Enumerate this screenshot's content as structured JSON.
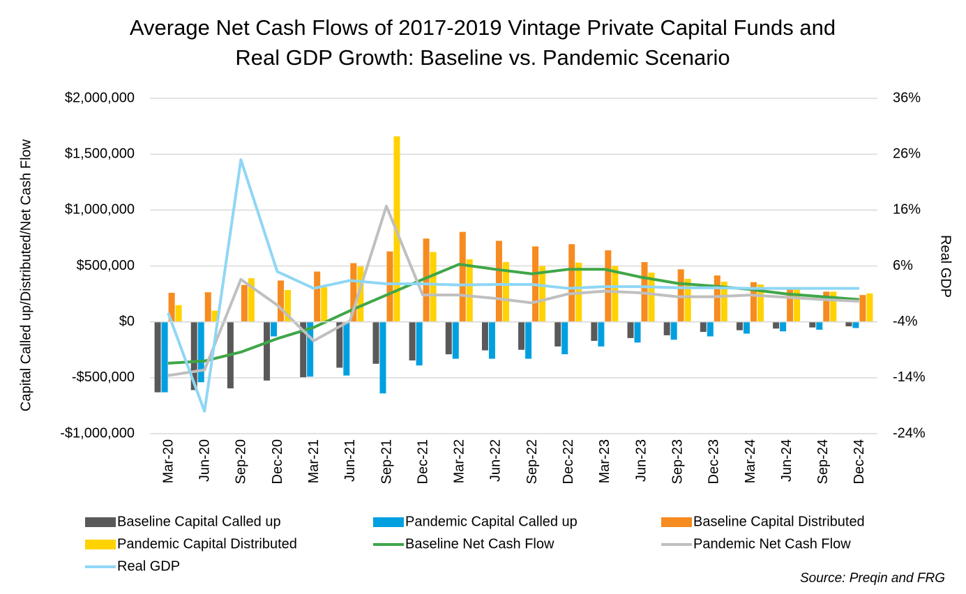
{
  "chart_data": {
    "type": "bar",
    "title": "Average Net Cash Flows of 2017-2019 Vintage Private Capital Funds and",
    "subtitle": "Real GDP Growth: Baseline vs. Pandemic Scenario",
    "y_label": "Capital Called up/Distributed/Net Cash Flow",
    "y2_label": "Real GDP",
    "source": "Source: Preqin and FRG",
    "categories": [
      "Mar-20",
      "Jun-20",
      "Sep-20",
      "Dec-20",
      "Mar-21",
      "Jun-21",
      "Sep-21",
      "Dec-21",
      "Mar-22",
      "Jun-22",
      "Sep-22",
      "Dec-22",
      "Mar-23",
      "Jun-23",
      "Sep-23",
      "Dec-23",
      "Mar-24",
      "Jun-24",
      "Sep-24",
      "Dec-24"
    ],
    "ylim": [
      -1000000,
      2000000
    ],
    "yticks": [
      {
        "value": -1000000,
        "label": "-$1,000,000"
      },
      {
        "value": -500000,
        "label": "-$500,000"
      },
      {
        "value": 0,
        "label": "$0"
      },
      {
        "value": 500000,
        "label": "$500,000"
      },
      {
        "value": 1000000,
        "label": "$1,000,000"
      },
      {
        "value": 1500000,
        "label": "$1,500,000"
      },
      {
        "value": 2000000,
        "label": "$2,000,000"
      }
    ],
    "y2lim": [
      -24,
      36
    ],
    "y2ticks": [
      {
        "value": -24,
        "label": "-24%"
      },
      {
        "value": -14,
        "label": "-14%"
      },
      {
        "value": -4,
        "label": "-4%"
      },
      {
        "value": 6,
        "label": "6%"
      },
      {
        "value": 16,
        "label": "16%"
      },
      {
        "value": 26,
        "label": "26%"
      },
      {
        "value": 36,
        "label": "36%"
      }
    ],
    "grid": true,
    "series": [
      {
        "name": "Baseline Capital Called up",
        "type": "bar",
        "color": "#595959",
        "values": [
          -630000,
          -610000,
          -595000,
          -525000,
          -495000,
          -410000,
          -375000,
          -345000,
          -290000,
          -255000,
          -250000,
          -220000,
          -170000,
          -145000,
          -120000,
          -90000,
          -75000,
          -60000,
          -50000,
          -40000
        ]
      },
      {
        "name": "Pandemic Capital Called up",
        "type": "bar",
        "color": "#00a0e0",
        "values": [
          -630000,
          -540000,
          0,
          -130000,
          -490000,
          -480000,
          -640000,
          -390000,
          -330000,
          -330000,
          -330000,
          -290000,
          -220000,
          -185000,
          -160000,
          -130000,
          -105000,
          -85000,
          -70000,
          -55000
        ]
      },
      {
        "name": "Baseline Capital Distributed",
        "type": "bar",
        "color": "#f68b1f",
        "values": [
          260000,
          265000,
          330000,
          370000,
          450000,
          525000,
          630000,
          745000,
          805000,
          725000,
          675000,
          695000,
          640000,
          535000,
          470000,
          415000,
          355000,
          300000,
          270000,
          240000
        ]
      },
      {
        "name": "Pandemic Capital Distributed",
        "type": "bar",
        "color": "#ffd200",
        "values": [
          150000,
          100000,
          390000,
          285000,
          310000,
          495000,
          1660000,
          625000,
          560000,
          535000,
          500000,
          530000,
          500000,
          440000,
          385000,
          360000,
          335000,
          290000,
          270000,
          255000
        ]
      },
      {
        "name": "Baseline Net Cash Flow",
        "type": "line",
        "color": "#3fa648",
        "values": [
          -370000,
          -350000,
          -270000,
          -150000,
          -50000,
          100000,
          240000,
          380000,
          515000,
          470000,
          430000,
          470000,
          470000,
          400000,
          345000,
          320000,
          290000,
          250000,
          225000,
          200000
        ]
      },
      {
        "name": "Pandemic Net Cash Flow",
        "type": "line",
        "color": "#bfbfbf",
        "values": [
          -480000,
          -430000,
          380000,
          150000,
          -170000,
          10000,
          1035000,
          240000,
          240000,
          210000,
          170000,
          250000,
          275000,
          260000,
          225000,
          225000,
          240000,
          220000,
          200000,
          185000
        ]
      },
      {
        "name": "Real GDP",
        "type": "line",
        "axis": "y2",
        "color": "#8fd6f5",
        "values": [
          -2.4,
          -20,
          25,
          5,
          2,
          3.4,
          2.8,
          2.8,
          2.6,
          2.7,
          2.7,
          2,
          2.3,
          2.3,
          2.1,
          2.1,
          2,
          2,
          2,
          2
        ]
      }
    ]
  }
}
